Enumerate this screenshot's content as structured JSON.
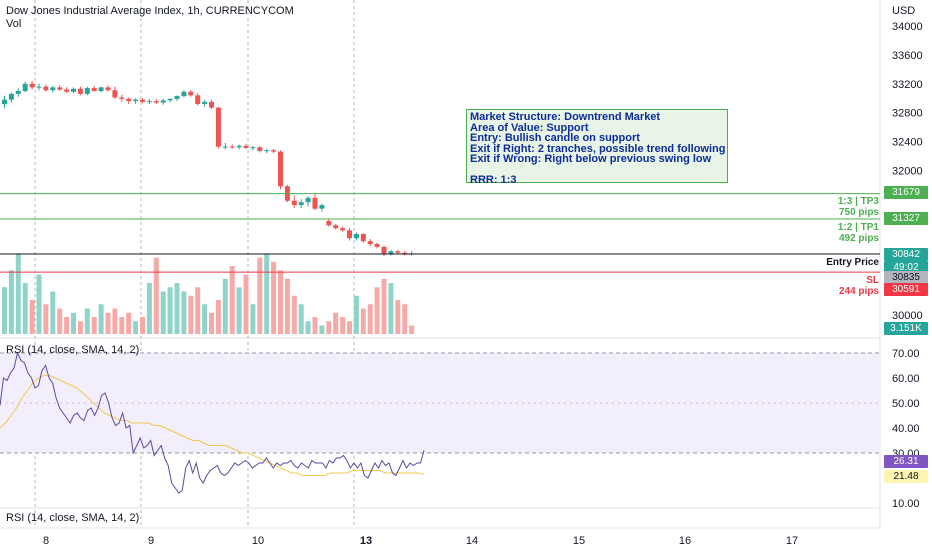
{
  "header": {
    "title": "Dow Jones Industrial Average Index, 1h, CURRENCYCOM",
    "vol_label": "Vol",
    "currency": "USD"
  },
  "price_axis": {
    "ticks": [
      "34000",
      "33600",
      "33200",
      "32800",
      "32400",
      "32000",
      "30000"
    ],
    "ticks_numeric": [
      34000,
      33600,
      33200,
      32800,
      32400,
      32000,
      30000
    ]
  },
  "rsi_axis": {
    "ticks": [
      "70.00",
      "60.00",
      "50.00",
      "40.00",
      "30.00",
      "20.00",
      "10.00"
    ]
  },
  "time_axis": {
    "labels": [
      "8",
      "9",
      "10",
      "13",
      "14",
      "15",
      "16",
      "17"
    ],
    "bold": "13"
  },
  "rsi": {
    "label": "RSI (14, close, SMA, 14, 2)",
    "label2": "RSI (14, close, SMA, 14, 2)",
    "upper": 70,
    "lower": 30,
    "rsi_value": "26.31",
    "sma_value": "21.48",
    "rsi_color": "#7e57c2",
    "sma_color": "#f9c74f"
  },
  "annotation": {
    "lines": [
      "Market Structure: Downtrend Market",
      "Area of Value: Support",
      "Entry: Bullish candle on support",
      "Exit if Right: 2 tranches, possible trend following",
      "Exit if Wrong: Right below previous swing low",
      "",
      "RRR: 1:3"
    ]
  },
  "levels": {
    "tp3": {
      "label": "1:3 | TP3",
      "pips": "750 pips",
      "price": "31679",
      "color": "#4caf50"
    },
    "tp1": {
      "label": "1:2 | TP1",
      "pips": "492 pips",
      "price": "31327",
      "color": "#4caf50"
    },
    "entry": {
      "label": "Entry Price",
      "price": "30842",
      "countdown": "49:02",
      "color": "#131722"
    },
    "current": {
      "price": "30835"
    },
    "sl": {
      "label": "SL",
      "pips": "244 pips",
      "price": "30591",
      "color": "#f23645"
    },
    "volume": {
      "value": "3.151K"
    }
  },
  "colors": {
    "up": "#26a69a",
    "down": "#ef5350",
    "vol_up": "#8fd3c9",
    "vol_down": "#f7a9a7",
    "rsi_band": "#f3eefc"
  },
  "chart_data": {
    "type": "candlestick",
    "title": "Dow Jones Industrial Average Index, 1h, CURRENCYCOM",
    "ylabel": "USD",
    "x_labels": [
      "8",
      "9",
      "10",
      "13",
      "14",
      "15",
      "16",
      "17"
    ],
    "candles": [
      {
        "o": 32920,
        "h": 33030,
        "l": 32860,
        "c": 32980
      },
      {
        "o": 32980,
        "h": 33080,
        "l": 32940,
        "c": 33060
      },
      {
        "o": 33060,
        "h": 33140,
        "l": 33020,
        "c": 33100
      },
      {
        "o": 33100,
        "h": 33230,
        "l": 33080,
        "c": 33200
      },
      {
        "o": 33200,
        "h": 33240,
        "l": 33120,
        "c": 33150
      },
      {
        "o": 33150,
        "h": 33200,
        "l": 33110,
        "c": 33160
      },
      {
        "o": 33160,
        "h": 33190,
        "l": 33090,
        "c": 33110
      },
      {
        "o": 33110,
        "h": 33170,
        "l": 33080,
        "c": 33150
      },
      {
        "o": 33150,
        "h": 33180,
        "l": 33100,
        "c": 33120
      },
      {
        "o": 33120,
        "h": 33150,
        "l": 33070,
        "c": 33090
      },
      {
        "o": 33090,
        "h": 33150,
        "l": 33070,
        "c": 33130
      },
      {
        "o": 33130,
        "h": 33160,
        "l": 33040,
        "c": 33060
      },
      {
        "o": 33060,
        "h": 33160,
        "l": 33040,
        "c": 33140
      },
      {
        "o": 33140,
        "h": 33170,
        "l": 33090,
        "c": 33100
      },
      {
        "o": 33100,
        "h": 33160,
        "l": 33080,
        "c": 33150
      },
      {
        "o": 33150,
        "h": 33180,
        "l": 33090,
        "c": 33110
      },
      {
        "o": 33110,
        "h": 33160,
        "l": 32990,
        "c": 33010
      },
      {
        "o": 33010,
        "h": 33050,
        "l": 32950,
        "c": 32990
      },
      {
        "o": 32990,
        "h": 33010,
        "l": 32920,
        "c": 32960
      },
      {
        "o": 32960,
        "h": 33000,
        "l": 32920,
        "c": 32980
      },
      {
        "o": 32980,
        "h": 33000,
        "l": 32930,
        "c": 32950
      },
      {
        "o": 32950,
        "h": 32990,
        "l": 32920,
        "c": 32960
      },
      {
        "o": 32960,
        "h": 32990,
        "l": 32920,
        "c": 32940
      },
      {
        "o": 32940,
        "h": 32990,
        "l": 32910,
        "c": 32970
      },
      {
        "o": 32970,
        "h": 33000,
        "l": 32940,
        "c": 32990
      },
      {
        "o": 32990,
        "h": 33040,
        "l": 32960,
        "c": 33030
      },
      {
        "o": 33030,
        "h": 33110,
        "l": 33010,
        "c": 33090
      },
      {
        "o": 33090,
        "h": 33110,
        "l": 33020,
        "c": 33040
      },
      {
        "o": 33040,
        "h": 33070,
        "l": 32900,
        "c": 32920
      },
      {
        "o": 32920,
        "h": 32980,
        "l": 32880,
        "c": 32950
      },
      {
        "o": 32950,
        "h": 32980,
        "l": 32850,
        "c": 32870
      },
      {
        "o": 32870,
        "h": 32880,
        "l": 32300,
        "c": 32330
      },
      {
        "o": 32330,
        "h": 32380,
        "l": 32290,
        "c": 32330
      },
      {
        "o": 32330,
        "h": 32360,
        "l": 32300,
        "c": 32320
      },
      {
        "o": 32320,
        "h": 32360,
        "l": 32290,
        "c": 32340
      },
      {
        "o": 32340,
        "h": 32370,
        "l": 32300,
        "c": 32310
      },
      {
        "o": 32310,
        "h": 32340,
        "l": 32280,
        "c": 32320
      },
      {
        "o": 32320,
        "h": 32340,
        "l": 32250,
        "c": 32270
      },
      {
        "o": 32270,
        "h": 32300,
        "l": 32240,
        "c": 32280
      },
      {
        "o": 32280,
        "h": 32300,
        "l": 32240,
        "c": 32260
      },
      {
        "o": 32260,
        "h": 32280,
        "l": 31740,
        "c": 31780
      },
      {
        "o": 31780,
        "h": 31800,
        "l": 31560,
        "c": 31580
      },
      {
        "o": 31580,
        "h": 31650,
        "l": 31480,
        "c": 31520
      },
      {
        "o": 31520,
        "h": 31600,
        "l": 31480,
        "c": 31560
      },
      {
        "o": 31560,
        "h": 31640,
        "l": 31500,
        "c": 31620
      },
      {
        "o": 31620,
        "h": 31680,
        "l": 31450,
        "c": 31470
      },
      {
        "o": 31470,
        "h": 31540,
        "l": 31430,
        "c": 31520
      },
      {
        "o": 31300,
        "h": 31330,
        "l": 31220,
        "c": 31240
      },
      {
        "o": 31240,
        "h": 31260,
        "l": 31180,
        "c": 31200
      },
      {
        "o": 31200,
        "h": 31220,
        "l": 31150,
        "c": 31170
      },
      {
        "o": 31170,
        "h": 31200,
        "l": 31030,
        "c": 31060
      },
      {
        "o": 31060,
        "h": 31140,
        "l": 31030,
        "c": 31120
      },
      {
        "o": 31120,
        "h": 31130,
        "l": 31000,
        "c": 31020
      },
      {
        "o": 31020,
        "h": 31050,
        "l": 30950,
        "c": 30980
      },
      {
        "o": 30980,
        "h": 31000,
        "l": 30920,
        "c": 30940
      },
      {
        "o": 30940,
        "h": 30960,
        "l": 30810,
        "c": 30840
      },
      {
        "o": 30840,
        "h": 30900,
        "l": 30820,
        "c": 30880
      },
      {
        "o": 30880,
        "h": 30900,
        "l": 30840,
        "c": 30860
      },
      {
        "o": 30860,
        "h": 30880,
        "l": 30820,
        "c": 30850
      },
      {
        "o": 30850,
        "h": 30880,
        "l": 30820,
        "c": 30835
      }
    ],
    "volume_relative": [
      0.55,
      0.75,
      0.95,
      0.6,
      0.4,
      0.7,
      0.35,
      0.5,
      0.3,
      0.2,
      0.25,
      0.15,
      0.3,
      0.2,
      0.35,
      0.25,
      0.3,
      0.2,
      0.25,
      0.15,
      0.2,
      0.6,
      0.9,
      0.5,
      0.55,
      0.6,
      0.5,
      0.45,
      0.55,
      0.35,
      0.25,
      0.4,
      0.65,
      0.8,
      0.55,
      0.7,
      0.35,
      0.9,
      0.95,
      0.85,
      0.75,
      0.65,
      0.45,
      0.35,
      0.15,
      0.2,
      0.1,
      0.15,
      0.25,
      0.2,
      0.15,
      0.45,
      0.3,
      0.35,
      0.55,
      0.65,
      0.6,
      0.4,
      0.35,
      0.1
    ],
    "rsi_values": [
      49,
      60,
      59,
      62,
      64,
      70,
      67,
      66,
      62,
      60,
      56,
      57,
      63,
      65,
      60,
      58,
      52,
      48,
      46,
      44,
      42,
      45,
      46,
      44,
      43,
      47,
      48,
      45,
      48,
      53,
      54,
      50,
      44,
      41,
      42,
      46,
      40,
      41,
      30,
      33,
      36,
      32,
      33,
      35,
      29,
      31,
      33,
      28,
      25,
      18,
      16,
      14,
      15,
      24,
      27,
      22,
      26,
      20,
      18,
      21,
      23,
      24,
      25,
      22,
      21,
      22,
      24,
      26,
      25,
      26,
      27,
      26,
      24,
      25,
      26,
      26,
      28,
      26,
      24,
      26,
      25,
      26,
      26,
      27,
      25,
      24,
      26,
      25,
      24,
      27,
      26,
      26,
      26,
      24,
      27,
      26,
      28,
      28,
      29,
      27,
      24,
      26,
      24,
      26,
      21,
      20,
      23,
      26,
      24,
      27,
      25,
      26,
      22,
      21,
      24,
      27,
      24,
      26,
      25,
      26,
      26,
      31
    ],
    "rsi_sma": [
      40,
      42,
      45,
      48,
      52,
      55,
      58,
      60,
      61,
      61,
      60,
      59,
      58,
      57,
      56,
      54,
      52,
      50,
      48,
      46,
      45,
      44,
      43,
      43,
      42,
      42,
      42,
      42,
      41,
      41,
      40,
      39,
      38,
      37,
      36,
      35,
      35,
      34,
      33,
      33,
      33,
      33,
      32,
      31,
      30,
      30,
      29,
      28,
      27,
      26,
      25,
      24,
      23,
      22,
      22,
      21,
      21,
      21,
      21,
      21,
      22,
      22,
      22,
      22,
      23,
      23,
      23,
      23,
      23,
      23,
      22,
      22,
      22,
      22,
      22,
      22,
      22,
      21.48
    ]
  }
}
